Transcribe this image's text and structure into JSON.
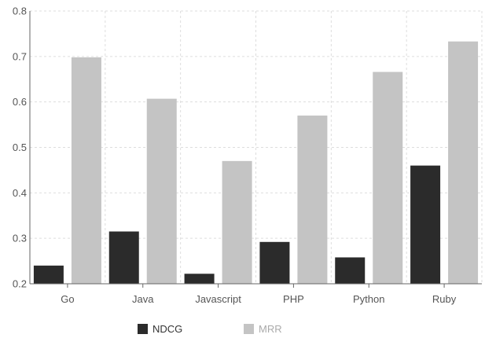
{
  "chart_data": {
    "type": "bar",
    "categories": [
      "Go",
      "Java",
      "Javascript",
      "PHP",
      "Python",
      "Ruby"
    ],
    "series": [
      {
        "name": "NDCG",
        "color": "#2b2b2b",
        "values": [
          0.24,
          0.315,
          0.222,
          0.292,
          0.258,
          0.46
        ]
      },
      {
        "name": "MRR",
        "color": "#c4c4c4",
        "values": [
          0.698,
          0.607,
          0.47,
          0.57,
          0.666,
          0.733
        ]
      }
    ],
    "ylim": [
      0.2,
      0.8
    ],
    "yticks": [
      "0.2",
      "0.3",
      "0.4",
      "0.5",
      "0.6",
      "0.7",
      "0.8"
    ],
    "grid": true,
    "legend_position": "bottom",
    "title": "",
    "xlabel": "",
    "ylabel": ""
  }
}
